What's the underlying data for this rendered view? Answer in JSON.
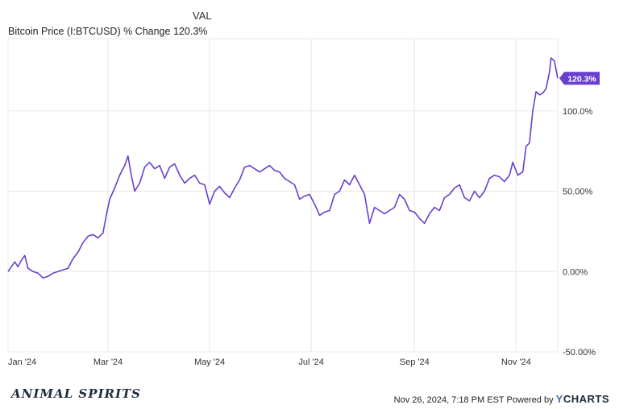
{
  "legend": {
    "column_header": "VAL",
    "series_name": "Bitcoin Price (I:BTCUSD) % Change",
    "series_value": "120.3%"
  },
  "footer": {
    "brand": "ANIMAL SPIRITS",
    "timestamp": "Nov 26, 2024, 7:18 PM EST Powered by",
    "provider": "CHARTS",
    "provider_prefix": "Y"
  },
  "colors": {
    "line": "#6a3fd0",
    "grid": "#e8e8e8",
    "axis_text": "#333333",
    "end_label_bg": "#6a3fd0",
    "end_label_text": "#ffffff"
  },
  "chart_data": {
    "type": "line",
    "title": "",
    "xlabel": "",
    "ylabel": "",
    "x_tick_labels": [
      "Jan '24",
      "Mar '24",
      "May '24",
      "Jul '24",
      "Sep '24",
      "Nov '24"
    ],
    "y_tick_labels": [
      "100.0%",
      "50.00%",
      "0.00%",
      "-50.00%"
    ],
    "y_tick_values": [
      100,
      50,
      0,
      -50
    ],
    "ylim": [
      -50,
      145
    ],
    "grid": true,
    "end_label": "120.3%",
    "series": [
      {
        "name": "Bitcoin Price (I:BTCUSD) % Change",
        "points": [
          [
            "2024-01-01",
            0
          ],
          [
            "2024-01-03",
            3
          ],
          [
            "2024-01-05",
            6
          ],
          [
            "2024-01-07",
            3
          ],
          [
            "2024-01-09",
            7
          ],
          [
            "2024-01-11",
            10
          ],
          [
            "2024-01-13",
            2
          ],
          [
            "2024-01-16",
            0
          ],
          [
            "2024-01-19",
            -1
          ],
          [
            "2024-01-22",
            -4
          ],
          [
            "2024-01-25",
            -3
          ],
          [
            "2024-01-28",
            -1
          ],
          [
            "2024-01-31",
            0
          ],
          [
            "2024-02-03",
            1
          ],
          [
            "2024-02-06",
            2
          ],
          [
            "2024-02-09",
            8
          ],
          [
            "2024-02-12",
            12
          ],
          [
            "2024-02-15",
            18
          ],
          [
            "2024-02-18",
            22
          ],
          [
            "2024-02-21",
            23
          ],
          [
            "2024-02-24",
            21
          ],
          [
            "2024-02-27",
            24
          ],
          [
            "2024-02-29",
            35
          ],
          [
            "2024-03-02",
            45
          ],
          [
            "2024-03-05",
            52
          ],
          [
            "2024-03-08",
            60
          ],
          [
            "2024-03-11",
            66
          ],
          [
            "2024-03-13",
            72
          ],
          [
            "2024-03-15",
            60
          ],
          [
            "2024-03-17",
            50
          ],
          [
            "2024-03-20",
            55
          ],
          [
            "2024-03-23",
            65
          ],
          [
            "2024-03-26",
            68
          ],
          [
            "2024-03-29",
            64
          ],
          [
            "2024-04-01",
            66
          ],
          [
            "2024-04-04",
            58
          ],
          [
            "2024-04-07",
            65
          ],
          [
            "2024-04-10",
            67
          ],
          [
            "2024-04-13",
            60
          ],
          [
            "2024-04-16",
            55
          ],
          [
            "2024-04-19",
            58
          ],
          [
            "2024-04-22",
            60
          ],
          [
            "2024-04-25",
            55
          ],
          [
            "2024-04-28",
            54
          ],
          [
            "2024-05-01",
            42
          ],
          [
            "2024-05-04",
            50
          ],
          [
            "2024-05-07",
            53
          ],
          [
            "2024-05-10",
            49
          ],
          [
            "2024-05-13",
            46
          ],
          [
            "2024-05-16",
            52
          ],
          [
            "2024-05-19",
            57
          ],
          [
            "2024-05-22",
            65
          ],
          [
            "2024-05-25",
            66
          ],
          [
            "2024-05-28",
            64
          ],
          [
            "2024-05-31",
            62
          ],
          [
            "2024-06-03",
            64
          ],
          [
            "2024-06-06",
            66
          ],
          [
            "2024-06-09",
            63
          ],
          [
            "2024-06-12",
            62
          ],
          [
            "2024-06-15",
            58
          ],
          [
            "2024-06-18",
            56
          ],
          [
            "2024-06-21",
            54
          ],
          [
            "2024-06-24",
            45
          ],
          [
            "2024-06-27",
            47
          ],
          [
            "2024-06-30",
            48
          ],
          [
            "2024-07-03",
            42
          ],
          [
            "2024-07-06",
            35
          ],
          [
            "2024-07-09",
            37
          ],
          [
            "2024-07-12",
            38
          ],
          [
            "2024-07-15",
            48
          ],
          [
            "2024-07-18",
            50
          ],
          [
            "2024-07-21",
            57
          ],
          [
            "2024-07-24",
            54
          ],
          [
            "2024-07-27",
            60
          ],
          [
            "2024-07-30",
            54
          ],
          [
            "2024-08-02",
            48
          ],
          [
            "2024-08-05",
            30
          ],
          [
            "2024-08-08",
            40
          ],
          [
            "2024-08-11",
            38
          ],
          [
            "2024-08-14",
            36
          ],
          [
            "2024-08-17",
            38
          ],
          [
            "2024-08-20",
            40
          ],
          [
            "2024-08-23",
            48
          ],
          [
            "2024-08-26",
            45
          ],
          [
            "2024-08-29",
            38
          ],
          [
            "2024-09-01",
            37
          ],
          [
            "2024-09-04",
            33
          ],
          [
            "2024-09-07",
            30
          ],
          [
            "2024-09-10",
            36
          ],
          [
            "2024-09-13",
            40
          ],
          [
            "2024-09-16",
            38
          ],
          [
            "2024-09-19",
            46
          ],
          [
            "2024-09-22",
            48
          ],
          [
            "2024-09-25",
            52
          ],
          [
            "2024-09-28",
            54
          ],
          [
            "2024-10-01",
            46
          ],
          [
            "2024-10-04",
            44
          ],
          [
            "2024-10-07",
            50
          ],
          [
            "2024-10-10",
            46
          ],
          [
            "2024-10-13",
            50
          ],
          [
            "2024-10-16",
            58
          ],
          [
            "2024-10-19",
            60
          ],
          [
            "2024-10-22",
            59
          ],
          [
            "2024-10-25",
            56
          ],
          [
            "2024-10-28",
            60
          ],
          [
            "2024-10-30",
            68
          ],
          [
            "2024-11-02",
            60
          ],
          [
            "2024-11-05",
            62
          ],
          [
            "2024-11-07",
            78
          ],
          [
            "2024-11-09",
            80
          ],
          [
            "2024-11-11",
            100
          ],
          [
            "2024-11-13",
            112
          ],
          [
            "2024-11-15",
            110
          ],
          [
            "2024-11-17",
            111
          ],
          [
            "2024-11-19",
            114
          ],
          [
            "2024-11-21",
            124
          ],
          [
            "2024-11-22",
            133
          ],
          [
            "2024-11-24",
            131
          ],
          [
            "2024-11-26",
            120.3
          ]
        ]
      }
    ]
  }
}
